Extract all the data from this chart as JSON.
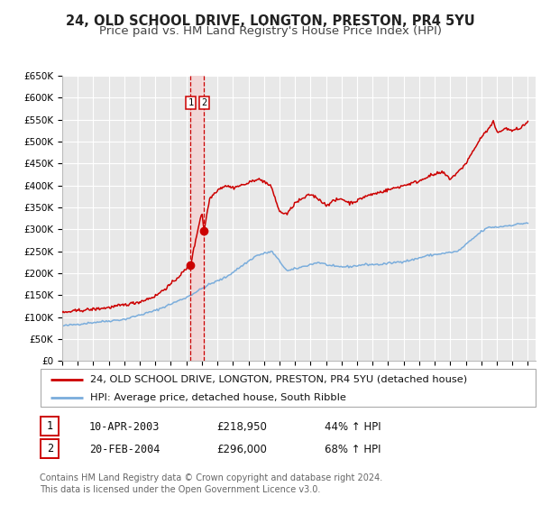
{
  "title": "24, OLD SCHOOL DRIVE, LONGTON, PRESTON, PR4 5YU",
  "subtitle": "Price paid vs. HM Land Registry's House Price Index (HPI)",
  "ylim": [
    0,
    650000
  ],
  "yticks": [
    0,
    50000,
    100000,
    150000,
    200000,
    250000,
    300000,
    350000,
    400000,
    450000,
    500000,
    550000,
    600000,
    650000
  ],
  "xlim_start": 1995.0,
  "xlim_end": 2025.5,
  "background_color": "#ffffff",
  "plot_bg_color": "#e8e8e8",
  "grid_color": "#ffffff",
  "sale1_date": 2003.27,
  "sale1_price": 218950,
  "sale2_date": 2004.13,
  "sale2_price": 296000,
  "sale_dot_color": "#cc0000",
  "hpi_line_color": "#7aaddc",
  "price_line_color": "#cc0000",
  "span_color": "#f5d0d0",
  "legend_property": "24, OLD SCHOOL DRIVE, LONGTON, PRESTON, PR4 5YU (detached house)",
  "legend_hpi": "HPI: Average price, detached house, South Ribble",
  "table_row1": [
    "1",
    "10-APR-2003",
    "£218,950",
    "44% ↑ HPI"
  ],
  "table_row2": [
    "2",
    "20-FEB-2004",
    "£296,000",
    "68% ↑ HPI"
  ],
  "footer": "Contains HM Land Registry data © Crown copyright and database right 2024.\nThis data is licensed under the Open Government Licence v3.0.",
  "title_fontsize": 10.5,
  "subtitle_fontsize": 9.5,
  "tick_fontsize": 7.5,
  "legend_fontsize": 8.5,
  "footer_fontsize": 7.0,
  "hpi_anchors_t": [
    1995.0,
    1997.0,
    1999.0,
    2001.0,
    2003.0,
    2004.5,
    2005.5,
    2007.5,
    2008.5,
    2009.5,
    2010.5,
    2011.5,
    2012.5,
    2013.5,
    2014.5,
    2015.5,
    2016.5,
    2017.5,
    2018.5,
    2019.5,
    2020.5,
    2021.5,
    2022.0,
    2022.5,
    2023.0,
    2024.0,
    2025.0
  ],
  "hpi_anchors_v": [
    80000,
    88000,
    95000,
    115000,
    145000,
    175000,
    190000,
    240000,
    250000,
    205000,
    215000,
    225000,
    215000,
    215000,
    220000,
    220000,
    225000,
    230000,
    240000,
    245000,
    250000,
    280000,
    295000,
    305000,
    305000,
    310000,
    315000
  ],
  "prop_anchors_t": [
    1995.0,
    1996.0,
    1997.0,
    1998.0,
    1999.0,
    2000.0,
    2001.0,
    2002.0,
    2003.0,
    2003.27,
    2003.8,
    2004.0,
    2004.13,
    2004.5,
    2005.0,
    2005.5,
    2006.0,
    2007.0,
    2007.5,
    2008.0,
    2008.5,
    2009.0,
    2009.5,
    2010.0,
    2010.5,
    2011.0,
    2011.5,
    2012.0,
    2012.5,
    2013.0,
    2013.5,
    2014.0,
    2014.5,
    2015.0,
    2016.0,
    2017.0,
    2018.0,
    2018.5,
    2019.0,
    2019.5,
    2020.0,
    2020.5,
    2021.0,
    2021.5,
    2022.0,
    2022.5,
    2022.8,
    2023.0,
    2023.5,
    2024.0,
    2024.5,
    2025.0
  ],
  "prop_anchors_v": [
    110000,
    115000,
    118000,
    122000,
    128000,
    135000,
    148000,
    175000,
    210000,
    218950,
    310000,
    340000,
    296000,
    370000,
    390000,
    400000,
    395000,
    405000,
    415000,
    410000,
    395000,
    340000,
    335000,
    360000,
    370000,
    380000,
    370000,
    355000,
    365000,
    370000,
    360000,
    365000,
    375000,
    380000,
    390000,
    400000,
    410000,
    420000,
    425000,
    430000,
    415000,
    430000,
    450000,
    480000,
    510000,
    530000,
    545000,
    520000,
    530000,
    525000,
    530000,
    545000
  ]
}
